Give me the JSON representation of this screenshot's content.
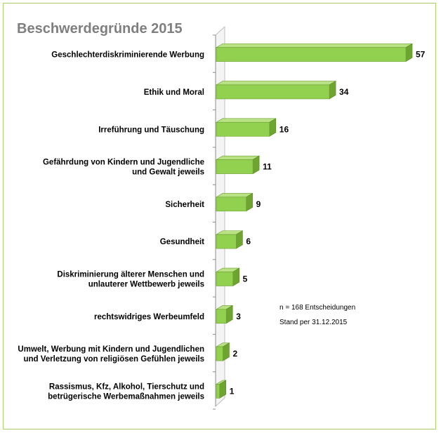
{
  "chart_data": {
    "type": "bar",
    "orientation": "horizontal",
    "title": "Beschwerdegründe 2015",
    "categories": [
      [
        "Geschlechterdiskriminierende Werbung"
      ],
      [
        "Ethik und Moral"
      ],
      [
        "Irreführung und Täuschung"
      ],
      [
        "Gefährdung von Kindern und Jugendliche",
        "und Gewalt jeweils"
      ],
      [
        "Sicherheit"
      ],
      [
        "Gesundheit"
      ],
      [
        "Diskriminierung älterer Menschen und",
        "unlauterer Wettbewerb jeweils"
      ],
      [
        "rechtswidriges Werbeumfeld"
      ],
      [
        "Umwelt, Werbung mit Kindern und Jugendlichen",
        "und Verletzung von religiösen Gefühlen jeweils"
      ],
      [
        "Rassismus, Kfz, Alkohol, Tierschutz und",
        "betrügerische Werbemaßnahmen jeweils"
      ]
    ],
    "values": [
      57,
      34,
      16,
      11,
      9,
      6,
      5,
      3,
      2,
      1
    ],
    "xlim": [
      0,
      57
    ],
    "bar_color": "#92d050",
    "legend": "none",
    "grid": false,
    "annotations": [
      "n = 168 Entscheidungen",
      "Stand per 31.12.2015"
    ]
  }
}
